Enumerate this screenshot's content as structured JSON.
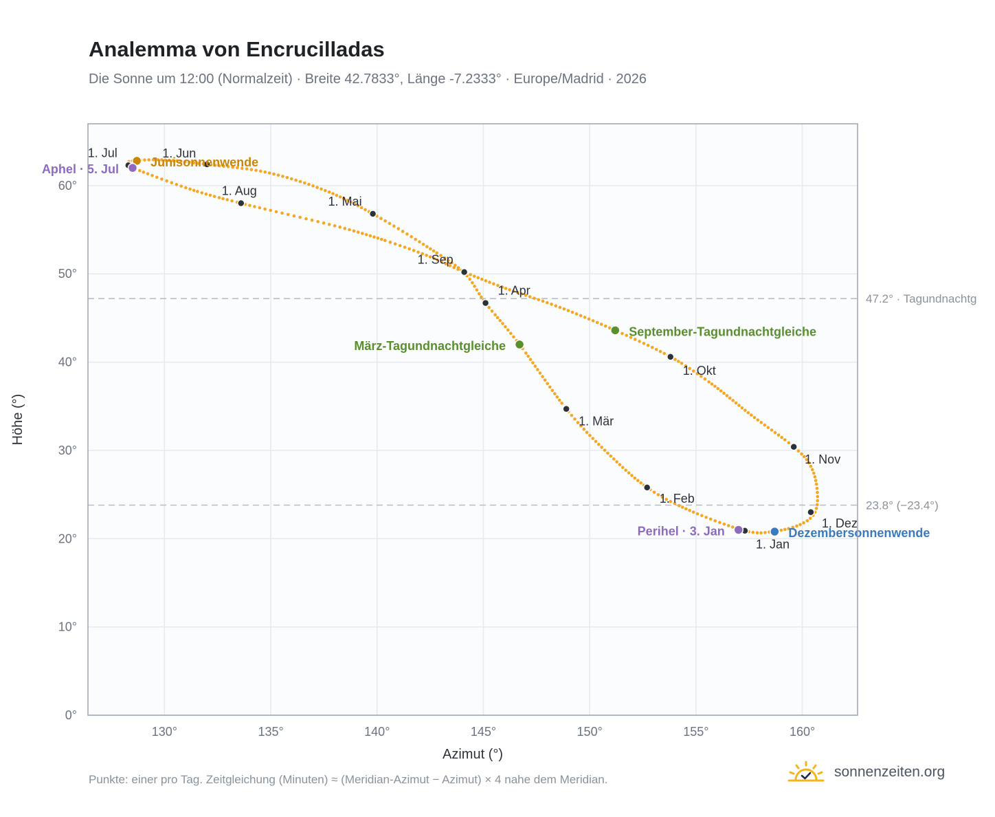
{
  "page": {
    "title": "Analemma von Encrucilladas",
    "subtitle": "Die Sonne um 12:00 (Normalzeit) · Breite 42.7833°, Länge -7.2333° · Europe/Madrid · 2026",
    "footnote": "Punkte: einer pro Tag. Zeitgleichung (Minuten) ≈ (Meridian-Azimut − Azimut) × 4 nahe dem Meridian.",
    "brand": "sonnenzeiten.org",
    "brand_icon": "sun-check-icon"
  },
  "colors": {
    "curve": "#f5a623",
    "month_marker": "#2d3139",
    "solstice_june": "#c8860a",
    "solstice_december": "#3a7abd",
    "equinox": "#5a8f2e",
    "apsis": "#8e6bbf",
    "grid": "#e6e9ee",
    "plot_border": "#9aa3af",
    "plot_background": "#fbfcfe",
    "reference_line": "#b8bec6"
  },
  "chart_data": {
    "type": "scatter",
    "xlabel": "Azimut (°)",
    "ylabel": "Höhe (°)",
    "xlim": [
      126.4,
      162.6
    ],
    "ylim": [
      0,
      67
    ],
    "x_ticks": [
      {
        "value": 130,
        "label": "130°"
      },
      {
        "value": 135,
        "label": "135°"
      },
      {
        "value": 140,
        "label": "140°"
      },
      {
        "value": 145,
        "label": "145°"
      },
      {
        "value": 150,
        "label": "150°"
      },
      {
        "value": 155,
        "label": "155°"
      },
      {
        "value": 160,
        "label": "160°"
      }
    ],
    "y_ticks": [
      {
        "value": 0,
        "label": "0°"
      },
      {
        "value": 10,
        "label": "10°"
      },
      {
        "value": 20,
        "label": "20°"
      },
      {
        "value": 30,
        "label": "30°"
      },
      {
        "value": 40,
        "label": "40°"
      },
      {
        "value": 50,
        "label": "50°"
      },
      {
        "value": 60,
        "label": "60°"
      }
    ],
    "grid": true,
    "reference_lines": [
      {
        "y": 47.2,
        "label": "47.2° · Tagundnachtg"
      },
      {
        "y": 23.8,
        "label": "23.8° (−23.4°)"
      }
    ],
    "path_points": [
      [
        157.3,
        20.9
      ],
      [
        158.6,
        20.8
      ],
      [
        159.9,
        21.6
      ],
      [
        160.6,
        23.0
      ],
      [
        160.7,
        25.5
      ],
      [
        160.4,
        28.2
      ],
      [
        159.6,
        30.4
      ],
      [
        157.6,
        34.0
      ],
      [
        155.7,
        37.6
      ],
      [
        153.8,
        40.6
      ],
      [
        151.2,
        43.6
      ],
      [
        148.6,
        46.2
      ],
      [
        146.0,
        48.4
      ],
      [
        144.1,
        50.2
      ],
      [
        142.0,
        52.4
      ],
      [
        138.7,
        55.0
      ],
      [
        133.6,
        58.0
      ],
      [
        131.2,
        59.6
      ],
      [
        128.5,
        62.0
      ],
      [
        128.2,
        62.4
      ],
      [
        128.5,
        62.8
      ],
      [
        130.0,
        62.9
      ],
      [
        132.0,
        62.4
      ],
      [
        134.8,
        61.5
      ],
      [
        137.5,
        59.5
      ],
      [
        139.8,
        56.8
      ],
      [
        142.4,
        53.0
      ],
      [
        144.1,
        50.1
      ],
      [
        145.1,
        46.7
      ],
      [
        146.7,
        42.0
      ],
      [
        148.9,
        34.7
      ],
      [
        150.8,
        29.8
      ],
      [
        152.7,
        25.8
      ],
      [
        154.7,
        23.2
      ],
      [
        157.3,
        20.9
      ]
    ],
    "month_markers": [
      {
        "label": "1. Jan",
        "x": 157.3,
        "y": 20.9
      },
      {
        "label": "1. Feb",
        "x": 152.7,
        "y": 25.8
      },
      {
        "label": "1. Mär",
        "x": 148.9,
        "y": 34.7
      },
      {
        "label": "1. Apr",
        "x": 145.1,
        "y": 46.7
      },
      {
        "label": "1. Mai",
        "x": 139.8,
        "y": 56.8
      },
      {
        "label": "1. Jun",
        "x": 132.0,
        "y": 62.4
      },
      {
        "label": "1. Jul",
        "x": 128.3,
        "y": 62.3
      },
      {
        "label": "1. Aug",
        "x": 133.6,
        "y": 58.0
      },
      {
        "label": "1. Sep",
        "x": 144.1,
        "y": 50.2
      },
      {
        "label": "1. Okt",
        "x": 153.8,
        "y": 40.6
      },
      {
        "label": "1. Nov",
        "x": 159.6,
        "y": 30.4
      },
      {
        "label": "1. Dez",
        "x": 160.4,
        "y": 23.0
      }
    ],
    "events": [
      {
        "label": "Junisonnenwende",
        "x": 128.7,
        "y": 62.8,
        "kind": "solstice_june"
      },
      {
        "label": "Dezembersonnenwende",
        "x": 158.7,
        "y": 20.8,
        "kind": "solstice_december"
      },
      {
        "label": "März-Tagundnachtgleiche",
        "x": 146.7,
        "y": 42.0,
        "kind": "equinox"
      },
      {
        "label": "September-Tagundnachtgleiche",
        "x": 151.2,
        "y": 43.6,
        "kind": "equinox"
      },
      {
        "label": "Aphel · 5. Jul",
        "x": 128.5,
        "y": 62.0,
        "kind": "apsis"
      },
      {
        "label": "Perihel · 3. Jan",
        "x": 157.0,
        "y": 21.0,
        "kind": "apsis"
      }
    ]
  }
}
